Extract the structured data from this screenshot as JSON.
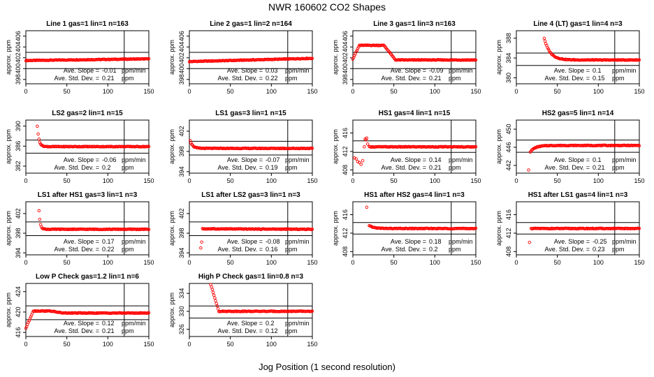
{
  "page": {
    "title": "NWR  160602  CO2 Shapes",
    "xlabel": "Jog Position (1 second resolution)"
  },
  "chart_data": [
    {
      "type": "scatter",
      "title": "Line 1 gas=1 lin=1 n=163",
      "ylabel": "approx. ppm",
      "xlim": [
        0,
        150
      ],
      "ylim": [
        397.2,
        407.0
      ],
      "yticks": [
        398,
        400,
        402,
        404,
        406
      ],
      "xticks": [
        0,
        50,
        100,
        150
      ],
      "vline": 120,
      "hlines": [
        403.0,
        400.0
      ],
      "marker_color": "#ff0000",
      "profile": {
        "kind": "flat",
        "base": 401.5,
        "end": 401.8
      },
      "slope_label": "Ave. Slope =",
      "slope_value": "-0.01",
      "slope_unit": "ppm/min",
      "std_label": "Ave. Std. Dev. =",
      "std_value": "0.21",
      "std_unit": "ppm"
    },
    {
      "type": "scatter",
      "title": "Line 2 gas=1 lin=2 n=164",
      "ylabel": "approx. ppm",
      "xlim": [
        0,
        150
      ],
      "ylim": [
        397.2,
        407.0
      ],
      "yticks": [
        398,
        400,
        402,
        404,
        406
      ],
      "xticks": [
        0,
        50,
        100,
        150
      ],
      "vline": 120,
      "hlines": [
        403.0,
        400.0
      ],
      "marker_color": "#ff0000",
      "profile": {
        "kind": "flat",
        "base": 401.3,
        "end": 401.9
      },
      "slope_label": "Ave. Slope =",
      "slope_value": "0.03",
      "slope_unit": "ppm/min",
      "std_label": "Ave. Std. Dev. =",
      "std_value": "0.22",
      "std_unit": "ppm"
    },
    {
      "type": "scatter",
      "title": "Line 3 gas=1 lin=3 n=163",
      "ylabel": "approx. ppm",
      "xlim": [
        0,
        150
      ],
      "ylim": [
        397.2,
        407.0
      ],
      "yticks": [
        398,
        400,
        402,
        404,
        406
      ],
      "xticks": [
        0,
        50,
        100,
        150
      ],
      "vline": 120,
      "hlines": [
        403.0,
        400.0
      ],
      "marker_color": "#ff0000",
      "profile": {
        "kind": "hump",
        "base": 401.6,
        "peak": 404.3,
        "start": 401.8,
        "rise_end": 8,
        "plateau_end": 38,
        "fall_end": 52
      },
      "slope_label": "Ave. Slope =",
      "slope_value": "-0.09",
      "slope_unit": "ppm/min",
      "std_label": "Ave. Std. Dev. =",
      "std_value": "0.21",
      "std_unit": "ppm"
    },
    {
      "type": "scatter",
      "title": "Line 4 (LT) gas=1 lin=4 n=3",
      "ylabel": "approx. ppm",
      "xlim": [
        0,
        150
      ],
      "ylim": [
        378.8,
        389.5
      ],
      "yticks": [
        380,
        384,
        388
      ],
      "xticks": [
        0,
        50,
        100,
        150
      ],
      "vline": 120,
      "hlines": [
        385.0,
        382.5
      ],
      "marker_color": "#ff0000",
      "profile": {
        "kind": "decay",
        "start_x": 34,
        "start_y": 388.0,
        "base": 383.6,
        "tau": 7
      },
      "slope_label": "Ave. Slope =",
      "slope_value": "0.1",
      "slope_unit": "ppm/min",
      "std_label": "Ave. Std. Dev. =",
      "std_value": "0.15",
      "std_unit": "ppm"
    },
    {
      "type": "scatter",
      "title": "LS2 gas=2 lin=1 n=15",
      "ylabel": "approx. ppm",
      "xlim": [
        0,
        150
      ],
      "ylim": [
        380.6,
        391.2
      ],
      "yticks": [
        382,
        386,
        390
      ],
      "xticks": [
        0,
        50,
        100,
        150
      ],
      "vline": 120,
      "hlines": [
        387.2,
        384.6
      ],
      "marker_color": "#ff0000",
      "profile": {
        "kind": "decay",
        "start_x": 14,
        "start_y": 390.0,
        "base": 385.9,
        "tau": 2
      },
      "slope_label": "Ave. Slope =",
      "slope_value": "-0.06",
      "slope_unit": "ppm/min",
      "std_label": "Ave. Std. Dev. =",
      "std_value": "0.2",
      "std_unit": "ppm"
    },
    {
      "type": "scatter",
      "title": "LS1 gas=3 lin=1 n=15",
      "ylabel": "approx. ppm",
      "xlim": [
        0,
        150
      ],
      "ylim": [
        393.7,
        404.2
      ],
      "yticks": [
        394,
        398,
        402
      ],
      "xticks": [
        0,
        50,
        100,
        150
      ],
      "vline": 120,
      "hlines": [
        400.0,
        397.3
      ],
      "marker_color": "#ff0000",
      "profile": {
        "kind": "decay",
        "start_x": 1,
        "start_y": 400.2,
        "base": 398.6,
        "tau": 3
      },
      "slope_label": "Ave. Slope =",
      "slope_value": "-0.07",
      "slope_unit": "ppm/min",
      "std_label": "Ave. Std. Dev. =",
      "std_value": "0.19",
      "std_unit": "ppm"
    },
    {
      "type": "scatter",
      "title": "HS1 gas=4 lin=1 n=15",
      "ylabel": "approx. ppm",
      "xlim": [
        0,
        150
      ],
      "ylim": [
        407.3,
        418.8
      ],
      "yticks": [
        408,
        412,
        416
      ],
      "xticks": [
        0,
        50,
        100,
        150
      ],
      "vline": 120,
      "hlines": [
        414.3,
        411.8
      ],
      "marker_color": "#ff0000",
      "profile": {
        "kind": "flat",
        "base": 413.0,
        "end": 413.0,
        "from": 20
      },
      "extra_points": [
        [
          2,
          410.6
        ],
        [
          4,
          410.4
        ],
        [
          6,
          409.8
        ],
        [
          8,
          409.6
        ],
        [
          10,
          409.2
        ],
        [
          12,
          410.0
        ],
        [
          14,
          413.0
        ],
        [
          15,
          414.7
        ],
        [
          16,
          414.5
        ],
        [
          17,
          414.9
        ],
        [
          18,
          413.6
        ]
      ],
      "slope_label": "Ave. Slope =",
      "slope_value": "0.14",
      "slope_unit": "ppm/min",
      "std_label": "Ave. Std. Dev. =",
      "std_value": "0.21",
      "std_unit": "ppm"
    },
    {
      "type": "scatter",
      "title": "HS2 gas=5 lin=1 n=14",
      "ylabel": "approx. ppm",
      "xlim": [
        0,
        150
      ],
      "ylim": [
        440.3,
        452.0
      ],
      "yticks": [
        442,
        446,
        450
      ],
      "xticks": [
        0,
        50,
        100,
        150
      ],
      "vline": 120,
      "hlines": [
        447.6,
        444.9
      ],
      "marker_color": "#ff0000",
      "profile": {
        "kind": "rise",
        "start_x": 17,
        "start_y": 445.0,
        "base": 446.4,
        "tau": 6
      },
      "extra_points": [
        [
          15,
          441.0
        ]
      ],
      "slope_label": "Ave. Slope =",
      "slope_value": "0.1",
      "slope_unit": "ppm/min",
      "std_label": "Ave. Std. Dev. =",
      "std_value": "0.21",
      "std_unit": "ppm"
    },
    {
      "type": "scatter",
      "title": "LS1 after HS1 gas=3 lin=1 n=3",
      "ylabel": "approx. ppm",
      "xlim": [
        0,
        150
      ],
      "ylim": [
        393.6,
        404.4
      ],
      "yticks": [
        394,
        398,
        402
      ],
      "xticks": [
        0,
        50,
        100,
        150
      ],
      "vline": 120,
      "hlines": [
        400.3,
        397.5
      ],
      "marker_color": "#ff0000",
      "profile": {
        "kind": "decay",
        "start_x": 16,
        "start_y": 402.6,
        "base": 398.8,
        "tau": 1.5
      },
      "slope_label": "Ave. Slope =",
      "slope_value": "0.17",
      "slope_unit": "ppm/min",
      "std_label": "Ave. Std. Dev. =",
      "std_value": "0.22",
      "std_unit": "ppm"
    },
    {
      "type": "scatter",
      "title": "LS1 after LS2 gas=3 lin=1 n=3",
      "ylabel": "approx. ppm",
      "xlim": [
        0,
        150
      ],
      "ylim": [
        393.6,
        404.4
      ],
      "yticks": [
        394,
        398,
        402
      ],
      "xticks": [
        0,
        50,
        100,
        150
      ],
      "vline": 120,
      "hlines": [
        400.3,
        397.5
      ],
      "marker_color": "#ff0000",
      "profile": {
        "kind": "flat",
        "base": 398.9,
        "end": 398.8,
        "from": 16
      },
      "extra_points": [
        [
          14,
          395.0
        ],
        [
          15,
          396.2
        ]
      ],
      "slope_label": "Ave. Slope =",
      "slope_value": "-0.08",
      "slope_unit": "ppm/min",
      "std_label": "Ave. Std. Dev. =",
      "std_value": "0.16",
      "std_unit": "ppm"
    },
    {
      "type": "scatter",
      "title": "HS1 after HS2 gas=4 lin=1 n=3",
      "ylabel": "approx. ppm",
      "xlim": [
        0,
        150
      ],
      "ylim": [
        407.3,
        418.8
      ],
      "yticks": [
        408,
        412,
        416
      ],
      "xticks": [
        0,
        50,
        100,
        150
      ],
      "vline": 120,
      "hlines": [
        414.3,
        411.8
      ],
      "marker_color": "#ff0000",
      "profile": {
        "kind": "decay",
        "start_x": 20,
        "start_y": 413.6,
        "base": 413.0,
        "tau": 6
      },
      "extra_points": [
        [
          17,
          417.6
        ]
      ],
      "slope_label": "Ave. Slope =",
      "slope_value": "0.18",
      "slope_unit": "ppm/min",
      "std_label": "Ave. Std. Dev. =",
      "std_value": "0.2",
      "std_unit": "ppm"
    },
    {
      "type": "scatter",
      "title": "HS1 after LS1 gas=4 lin=1 n=3",
      "ylabel": "approx. ppm",
      "xlim": [
        0,
        150
      ],
      "ylim": [
        407.3,
        418.8
      ],
      "yticks": [
        408,
        412,
        416
      ],
      "xticks": [
        0,
        50,
        100,
        150
      ],
      "vline": 120,
      "hlines": [
        414.3,
        411.8
      ],
      "marker_color": "#ff0000",
      "profile": {
        "kind": "flat",
        "base": 413.0,
        "end": 413.0,
        "from": 18
      },
      "extra_points": [
        [
          16,
          410.0
        ]
      ],
      "slope_label": "Ave. Slope =",
      "slope_value": "-0.25",
      "slope_unit": "ppm/min",
      "std_label": "Ave. Std. Dev. =",
      "std_value": "0.23",
      "std_unit": "ppm"
    },
    {
      "type": "scatter",
      "title": "Low P Check gas=1.2 lin=1 n=6",
      "ylabel": "approx. ppm",
      "xlim": [
        0,
        150
      ],
      "ylim": [
        415.2,
        425.6
      ],
      "yticks": [
        416,
        420,
        424
      ],
      "xticks": [
        0,
        50,
        100,
        150
      ],
      "vline": 120,
      "hlines": [
        421.2,
        418.5
      ],
      "marker_color": "#ff0000",
      "profile": {
        "kind": "hump",
        "base": 419.8,
        "peak": 420.2,
        "start": 416.8,
        "rise_end": 9,
        "plateau_end": 30,
        "fall_end": 45
      },
      "slope_label": "Ave. Slope =",
      "slope_value": "0.12",
      "slope_unit": "ppm/min",
      "std_label": "Ave. Std. Dev. =",
      "std_value": "0.21",
      "std_unit": "ppm"
    },
    {
      "type": "scatter",
      "title": "High P Check gas=1 lin=0.8 n=3",
      "ylabel": "approx. ppm",
      "xlim": [
        0,
        150
      ],
      "ylim": [
        324.4,
        336.2
      ],
      "yticks": [
        326,
        330,
        334
      ],
      "xticks": [
        0,
        50,
        100,
        150
      ],
      "vline": 120,
      "hlines": [
        331.2,
        328.5
      ],
      "marker_color": "#ff0000",
      "profile": {
        "kind": "ramp",
        "start_x": 26,
        "start_y": 336.0,
        "end_x": 36,
        "base": 330.0
      },
      "slope_label": "Ave. Slope =",
      "slope_value": "0.2",
      "slope_unit": "ppm/min",
      "std_label": "Ave. Std. Dev. =",
      "std_value": "0.12",
      "std_unit": "ppm"
    }
  ]
}
